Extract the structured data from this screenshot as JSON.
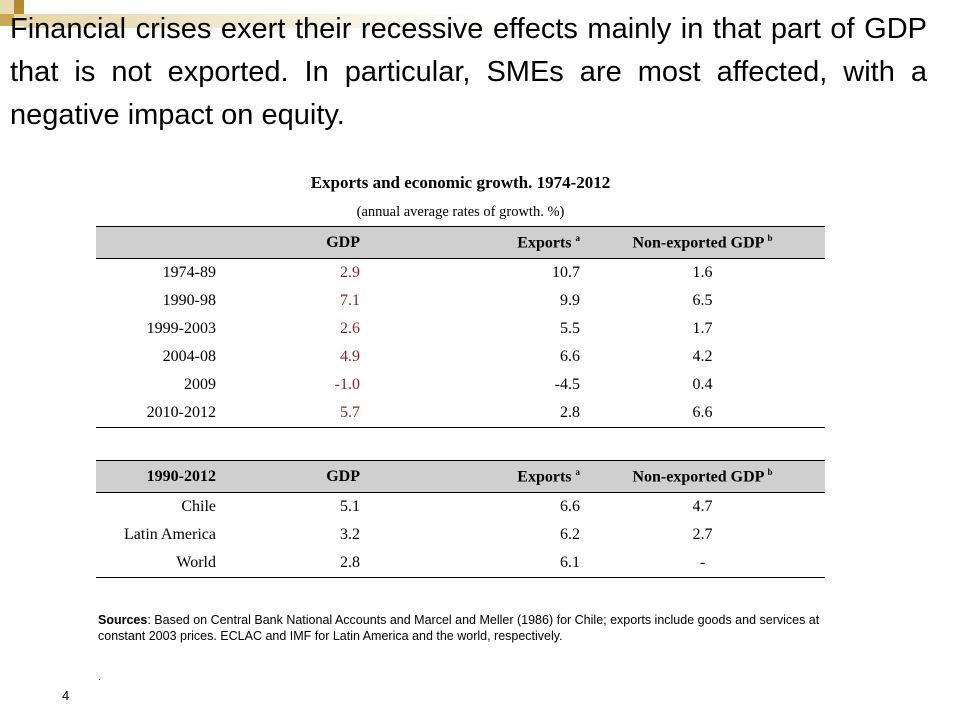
{
  "slide": {
    "heading": "Financial crises exert their  recessive effects mainly in that part of GDP that is not exported. In particular, SMEs are most affected, with a negative impact on equity.",
    "table_title": "Exports and economic growth. 1974-2012",
    "table_subtitle": "(annual average rates of growth. %)",
    "table1": {
      "headers": [
        "",
        "GDP",
        "Exports",
        "Non-exported GDP"
      ],
      "header_sups": [
        "",
        "",
        "a",
        "b"
      ],
      "rows": [
        [
          "1974-89",
          "2.9",
          "10.7",
          "1.6"
        ],
        [
          "1990-98",
          "7.1",
          "9.9",
          "6.5"
        ],
        [
          "1999-2003",
          "2.6",
          "5.5",
          "1.7"
        ],
        [
          "2004-08",
          "4.9",
          "6.6",
          "4.2"
        ],
        [
          "2009",
          "-1.0",
          "-4.5",
          "0.4"
        ],
        [
          "2010-2012",
          "5.7",
          "2.8",
          "6.6"
        ]
      ]
    },
    "table2": {
      "headers": [
        "1990-2012",
        "GDP",
        "Exports",
        "Non-exported GDP"
      ],
      "header_sups": [
        "",
        "",
        "a",
        "b"
      ],
      "rows": [
        [
          "Chile",
          "5.1",
          "6.6",
          "4.7"
        ],
        [
          "Latin America",
          "3.2",
          "6.2",
          "2.7"
        ],
        [
          "World",
          "2.8",
          "6.1",
          "-"
        ]
      ]
    },
    "sources_label": "Sources",
    "sources_text": ": Based on Central Bank National Accounts and Marcel and Meller (1986) for Chile; exports include goods and services at constant 2003 prices. ECLAC and IMF for Latin America and the world, respectively.",
    "trailing_dot": ".",
    "page_number": "4",
    "colors": {
      "highlight_red": "#9b1c1c",
      "header_gray": "#cfcfcf",
      "accent_gold": "#b58a2e"
    }
  }
}
